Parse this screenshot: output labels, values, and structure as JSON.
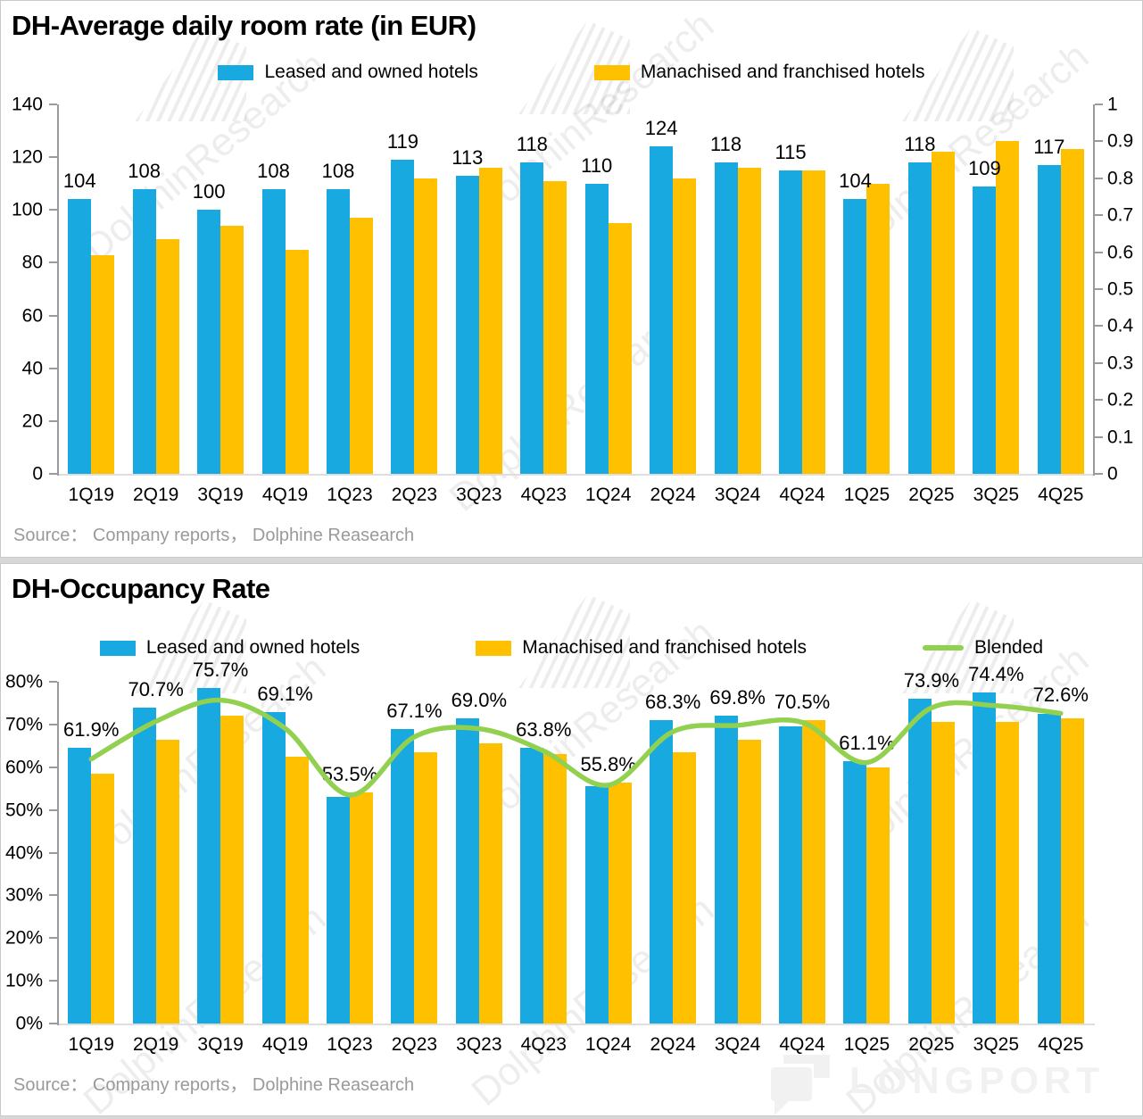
{
  "watermark": {
    "diagonal_text": "DolphinResearch",
    "brand": "LONGPORT"
  },
  "chart_data": [
    {
      "type": "bar",
      "title": "DH-Average daily room rate (in EUR)",
      "categories": [
        "1Q19",
        "2Q19",
        "3Q19",
        "4Q19",
        "1Q23",
        "2Q23",
        "3Q23",
        "4Q23",
        "1Q24",
        "2Q24",
        "3Q24",
        "4Q24",
        "1Q25",
        "2Q25",
        "3Q25",
        "4Q25"
      ],
      "series": [
        {
          "name": "Leased and owned hotels",
          "color": "#17A9E0",
          "values": [
            104,
            108,
            100,
            108,
            108,
            119,
            113,
            118,
            110,
            124,
            118,
            115,
            104,
            118,
            109,
            117
          ]
        },
        {
          "name": "Manachised and franchised hotels",
          "color": "#FFC000",
          "values": [
            83,
            89,
            94,
            85,
            97,
            112,
            116,
            111,
            95,
            112,
            116,
            115,
            110,
            122,
            126,
            123
          ]
        }
      ],
      "data_labels": [
        "104",
        "108",
        "100",
        "108",
        "108",
        "119",
        "113",
        "118",
        "110",
        "124",
        "118",
        "115",
        "104",
        "118",
        "109",
        "117"
      ],
      "left_axis": {
        "min": 0,
        "max": 140,
        "step": 20,
        "labels": [
          "0",
          "20",
          "40",
          "60",
          "80",
          "100",
          "120",
          "140"
        ]
      },
      "right_axis": {
        "min": 0,
        "max": 1,
        "step": 0.1,
        "labels": [
          "0",
          "0.1",
          "0.2",
          "0.3",
          "0.4",
          "0.5",
          "0.6",
          "0.7",
          "0.8",
          "0.9",
          "1"
        ]
      },
      "legend_position": "top",
      "grid": false,
      "source": "Source：  Company reports，  Dolphine Reasearch"
    },
    {
      "type": "bar+line",
      "title": "DH-Occupancy Rate",
      "categories": [
        "1Q19",
        "2Q19",
        "3Q19",
        "4Q19",
        "1Q23",
        "2Q23",
        "3Q23",
        "4Q23",
        "1Q24",
        "2Q24",
        "3Q24",
        "4Q24",
        "1Q25",
        "2Q25",
        "3Q25",
        "4Q25"
      ],
      "series": [
        {
          "name": "Leased and owned hotels",
          "type": "bar",
          "color": "#17A9E0",
          "values": [
            64.5,
            74.0,
            78.5,
            73.0,
            53.0,
            69.0,
            71.5,
            64.5,
            55.5,
            71.0,
            72.0,
            69.5,
            61.5,
            76.0,
            77.5,
            72.5
          ]
        },
        {
          "name": "Manachised and franchised hotels",
          "type": "bar",
          "color": "#FFC000",
          "values": [
            58.5,
            66.5,
            72.0,
            62.5,
            54.0,
            63.5,
            65.5,
            63.0,
            56.5,
            63.5,
            66.5,
            71.0,
            60.0,
            70.5,
            70.5,
            71.5
          ]
        },
        {
          "name": "Blended",
          "type": "line",
          "color": "#92D050",
          "values": [
            61.9,
            70.7,
            75.7,
            69.1,
            53.5,
            67.1,
            69.0,
            63.8,
            55.8,
            68.3,
            69.8,
            70.5,
            61.1,
            73.9,
            74.4,
            72.6
          ]
        }
      ],
      "data_labels": [
        "61.9%",
        "70.7%",
        "75.7%",
        "69.1%",
        "53.5%",
        "67.1%",
        "69.0%",
        "63.8%",
        "55.8%",
        "68.3%",
        "69.8%",
        "70.5%",
        "61.1%",
        "73.9%",
        "74.4%",
        "72.6%"
      ],
      "left_axis": {
        "min": 0,
        "max": 80,
        "step": 10,
        "labels": [
          "0%",
          "10%",
          "20%",
          "30%",
          "40%",
          "50%",
          "60%",
          "70%",
          "80%"
        ]
      },
      "legend_position": "top",
      "grid": false,
      "source": "Source：  Company reports，  Dolphine Reasearch"
    }
  ]
}
